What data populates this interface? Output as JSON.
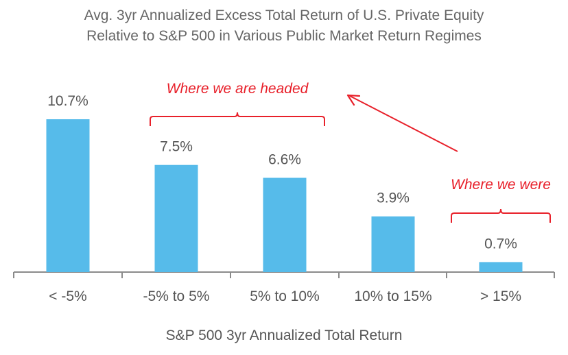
{
  "chart_data": {
    "type": "bar",
    "title": [
      "Avg. 3yr Annualized Excess Total Return of U.S. Private Equity",
      "Relative to S&P 500 in Various Public Market Return Regimes"
    ],
    "xlabel": "S&P 500 3yr Annualized Total Return",
    "ylabel": "",
    "categories": [
      "< -5%",
      "-5% to 5%",
      "5% to 10%",
      "10% to 15%",
      "> 15%"
    ],
    "values": [
      10.7,
      7.5,
      6.6,
      3.9,
      0.7
    ],
    "value_labels": [
      "10.7%",
      "7.5%",
      "6.6%",
      "3.9%",
      "0.7%"
    ],
    "ylim": [
      0,
      11
    ],
    "grid": false,
    "bar_color": "#56bbea",
    "annotations": [
      {
        "text": "Where we are headed",
        "spans": [
          "-5% to 5%",
          "5% to 10%"
        ],
        "color": "#e8202a"
      },
      {
        "text": "Where we were",
        "spans": [
          "> 15%"
        ],
        "color": "#e8202a"
      }
    ]
  }
}
